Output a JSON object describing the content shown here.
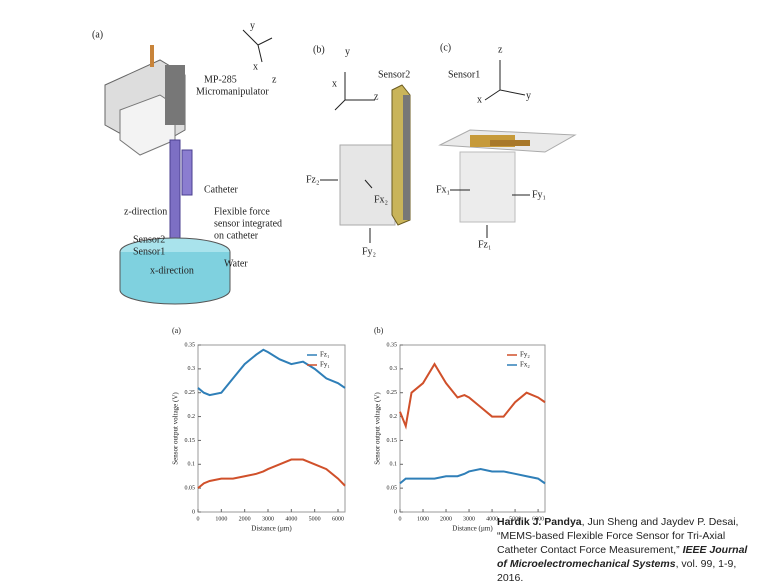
{
  "figure": {
    "panel_a": "(a)",
    "panel_b": "(b)",
    "panel_c": "(c)",
    "axes_a": [
      "y",
      "x",
      "z"
    ],
    "axes_b": [
      "y",
      "x",
      "z"
    ],
    "axes_c": [
      "z",
      "x",
      "y"
    ],
    "micromanipulator": [
      "MP-285",
      "Micromanipulator"
    ],
    "catheter": "Catheter",
    "z_direction": "z-direction",
    "flexible_sensor": [
      "Flexible force",
      "sensor integrated",
      "on catheter"
    ],
    "sensor2_a": "Sensor2",
    "sensor1_a": "Sensor1",
    "x_direction": "x-direction",
    "water": "Water",
    "sensor2_b": "Sensor2",
    "fz2": "Fz₂",
    "fx2": "Fx₂",
    "fy2": "Fy₂",
    "sensor1_c": "Sensor1",
    "fx1": "Fx₁",
    "fy1": "Fy₁",
    "fz1": "Fz₁"
  },
  "chart_data": [
    {
      "type": "line",
      "title": "(a)",
      "x_label": "Distance (µm)",
      "y_label": "Sensor output voltage (V)",
      "x": [
        0,
        250,
        500,
        1000,
        1500,
        2000,
        2500,
        2800,
        3000,
        3500,
        4000,
        4500,
        5000,
        5500,
        6000,
        6300
      ],
      "xlim": [
        0,
        6300
      ],
      "xticks": [
        0,
        1000,
        2000,
        3000,
        4000,
        5000,
        6000
      ],
      "ylim": [
        0,
        0.35
      ],
      "yticks": [
        0,
        0.05,
        0.1,
        0.15,
        0.2,
        0.25,
        0.3,
        0.35
      ],
      "legend": "upper right",
      "series": [
        {
          "name": "Fz₁",
          "color": "#2f7fb8",
          "values": [
            0.26,
            0.25,
            0.245,
            0.25,
            0.28,
            0.31,
            0.33,
            0.34,
            0.335,
            0.32,
            0.31,
            0.315,
            0.3,
            0.28,
            0.27,
            0.26
          ]
        },
        {
          "name": "Fy₁",
          "color": "#d0502a",
          "values": [
            0.05,
            0.06,
            0.065,
            0.07,
            0.07,
            0.075,
            0.08,
            0.085,
            0.09,
            0.1,
            0.11,
            0.11,
            0.1,
            0.09,
            0.07,
            0.055
          ]
        }
      ]
    },
    {
      "type": "line",
      "title": "(b)",
      "x_label": "Distance (µm)",
      "y_label": "Sensor output voltage (V)",
      "x": [
        0,
        250,
        500,
        1000,
        1500,
        2000,
        2500,
        2800,
        3000,
        3500,
        4000,
        4500,
        5000,
        5500,
        6000,
        6300
      ],
      "xlim": [
        0,
        6300
      ],
      "xticks": [
        0,
        1000,
        2000,
        3000,
        4000,
        5000,
        6000
      ],
      "ylim": [
        0,
        0.35
      ],
      "yticks": [
        0,
        0.05,
        0.1,
        0.15,
        0.2,
        0.25,
        0.3,
        0.35
      ],
      "legend": "upper right",
      "series": [
        {
          "name": "Fy₂",
          "color": "#d0502a",
          "values": [
            0.21,
            0.18,
            0.25,
            0.27,
            0.31,
            0.27,
            0.24,
            0.245,
            0.24,
            0.22,
            0.2,
            0.2,
            0.23,
            0.25,
            0.24,
            0.23
          ]
        },
        {
          "name": "Fx₂",
          "color": "#2f7fb8",
          "values": [
            0.06,
            0.07,
            0.07,
            0.07,
            0.07,
            0.075,
            0.075,
            0.08,
            0.085,
            0.09,
            0.085,
            0.085,
            0.08,
            0.075,
            0.07,
            0.06
          ]
        }
      ]
    }
  ],
  "citation": {
    "author": "Hardik J. Pandya",
    "rest": ", Jun Sheng and Jaydev P. Desai, “MEMS-based Flexible Force Sensor for Tri-Axial Catheter Contact Force Measurement,” ",
    "journal": "IEEE Journal of Microelectromechanical Systems",
    "tail": ", vol. 99, 1-9, 2016."
  }
}
